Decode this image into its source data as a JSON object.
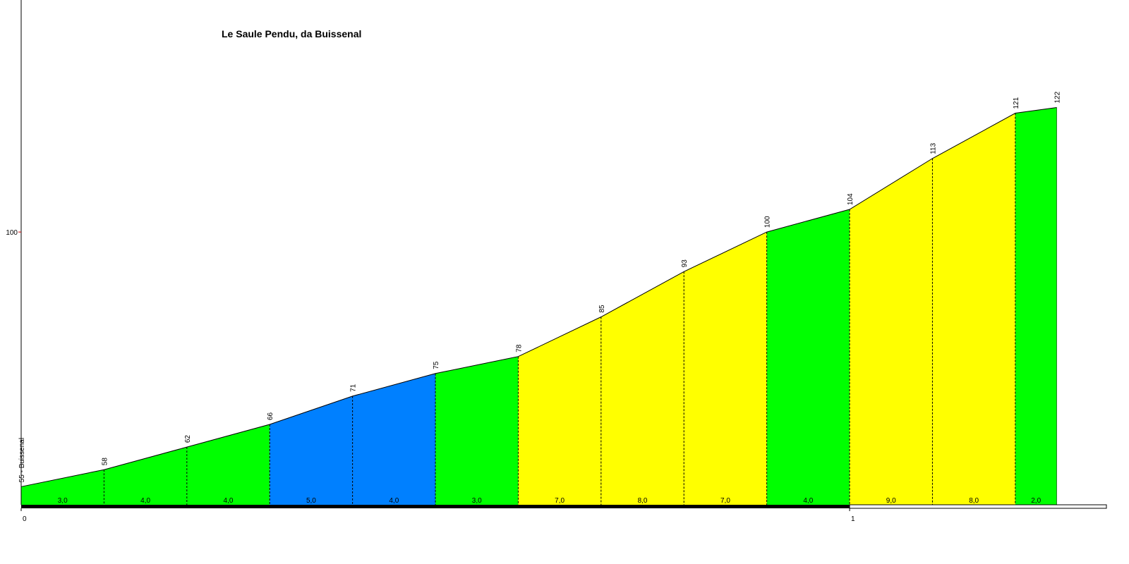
{
  "chart_data": {
    "type": "area",
    "title": "Le Saule Pendu, da Buissenal",
    "x": [
      0,
      0.1,
      0.2,
      0.3,
      0.4,
      0.5,
      0.6,
      0.7,
      0.8,
      0.9,
      1.0,
      1.1,
      1.2,
      1.25
    ],
    "values": [
      55,
      58,
      62,
      66,
      71,
      75,
      78,
      85,
      93,
      100,
      104,
      113,
      121,
      122
    ],
    "value_labels": [
      "55 - Buissenal",
      "58",
      "62",
      "66",
      "71",
      "75",
      "78",
      "85",
      "93",
      "100",
      "104",
      "113",
      "121",
      "122"
    ],
    "gradients": {
      "values": [
        3.0,
        4.0,
        4.0,
        5.0,
        4.0,
        3.0,
        7.0,
        8.0,
        7.0,
        4.0,
        9.0,
        8.0,
        2.0
      ],
      "value_labels": [
        "3,0",
        "4,0",
        "4,0",
        "5,0",
        "4,0",
        "3,0",
        "7,0",
        "8,0",
        "7,0",
        "4,0",
        "9,0",
        "8,0",
        "2,0"
      ],
      "colors": [
        "#00ff00",
        "#00ff00",
        "#00ff00",
        "#0080ff",
        "#0080ff",
        "#00ff00",
        "#ffff00",
        "#ffff00",
        "#ffff00",
        "#00ff00",
        "#ffff00",
        "#ffff00",
        "#00ff00"
      ]
    },
    "xlim": [
      0,
      1.31
    ],
    "xticks": [
      0,
      1
    ],
    "ylim": [
      51.8,
      141
    ],
    "yticks": [
      100
    ]
  }
}
